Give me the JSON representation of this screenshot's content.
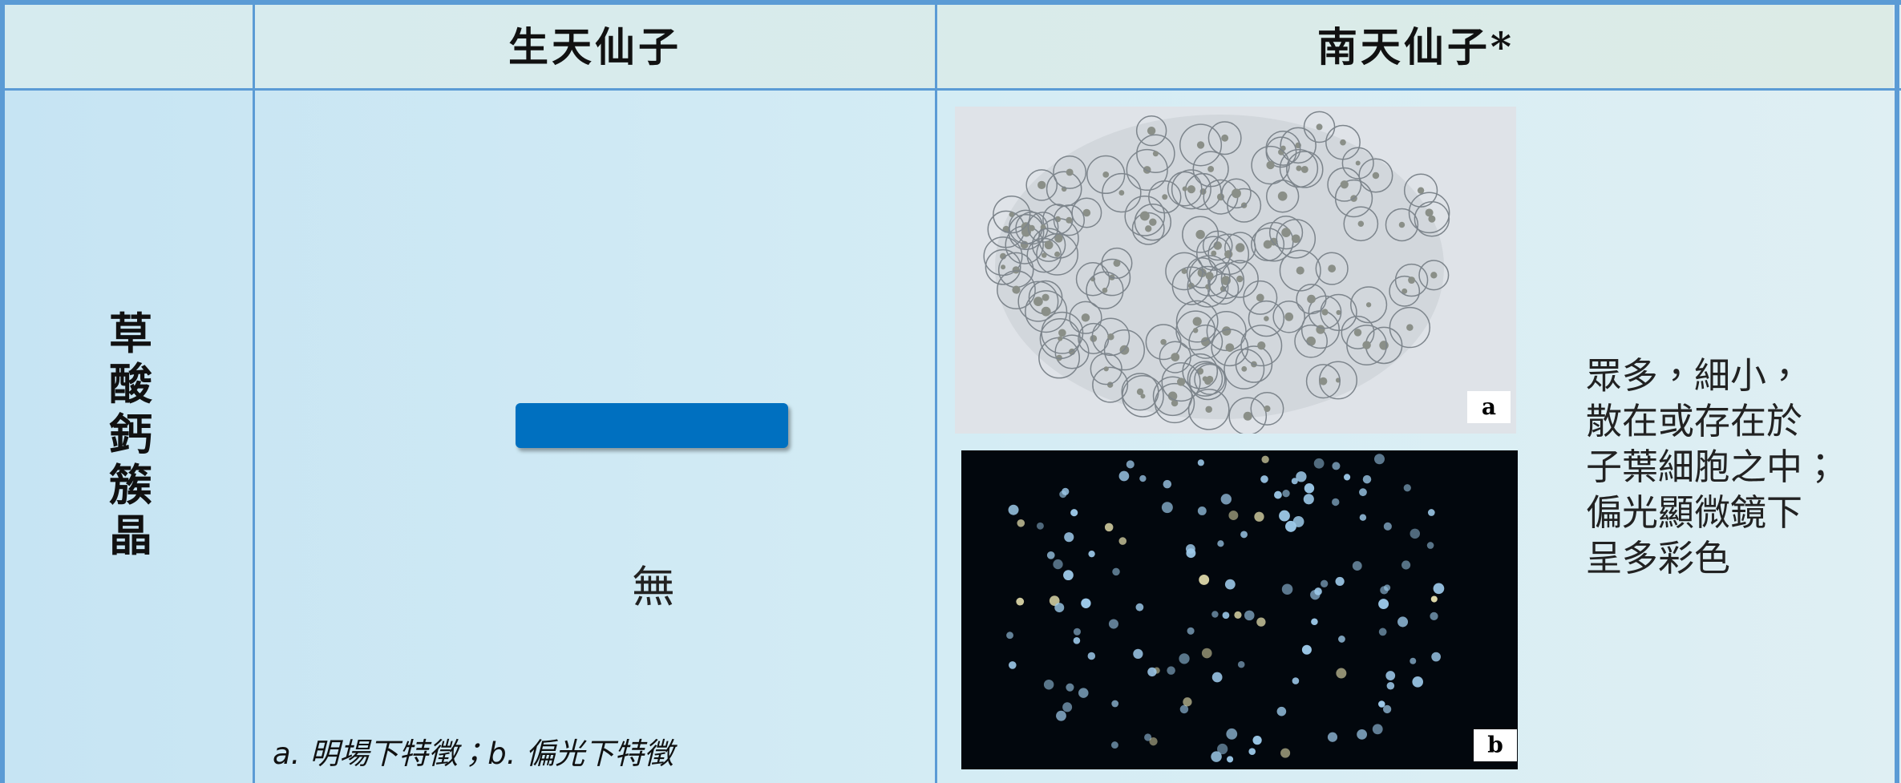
{
  "header": {
    "col1": "生天仙子",
    "col2": "南天仙子*"
  },
  "row": {
    "label": "草酸鈣簇晶",
    "col1_text": "無",
    "footnote": "a. 明場下特徵；b. 偏光下特徵",
    "image_labels": [
      "a",
      "b"
    ],
    "description": [
      "眾多，細小，",
      "散在或存在於",
      "子葉細胞之中；",
      "偏光顯微鏡下",
      "呈多彩色"
    ]
  }
}
